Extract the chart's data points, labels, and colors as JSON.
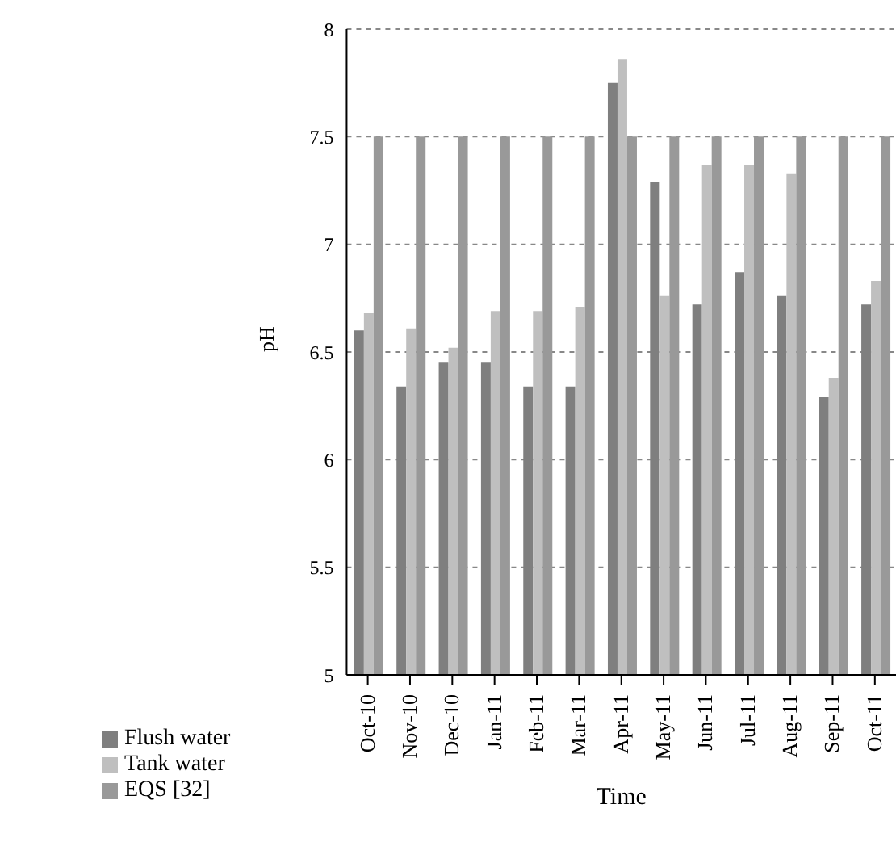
{
  "chart_data": {
    "type": "bar",
    "xlabel": "Time",
    "ylabel": "pH",
    "categories": [
      "Oct-10",
      "Nov-10",
      "Dec-10",
      "Jan-11",
      "Feb-11",
      "Mar-11",
      "Apr-11",
      "May-11",
      "Jun-11",
      "Jul-11",
      "Aug-11",
      "Sep-11",
      "Oct-11"
    ],
    "series": [
      {
        "name": "Flush water",
        "color": "#7f7f7f",
        "values": [
          6.6,
          6.34,
          6.45,
          6.45,
          6.34,
          6.34,
          7.75,
          7.29,
          6.72,
          6.87,
          6.76,
          6.29,
          6.72
        ]
      },
      {
        "name": "Tank water",
        "color": "#bfbfbf",
        "values": [
          6.68,
          6.61,
          6.52,
          6.69,
          6.69,
          6.71,
          7.86,
          6.76,
          7.37,
          7.37,
          7.33,
          6.38,
          6.83
        ]
      },
      {
        "name": "EQS [32]",
        "color": "#999999",
        "values": [
          7.5,
          7.5,
          7.5,
          7.5,
          7.5,
          7.5,
          7.5,
          7.5,
          7.5,
          7.5,
          7.5,
          7.5,
          7.5
        ]
      }
    ],
    "ylim": [
      5,
      8
    ],
    "yticks": [
      5,
      5.5,
      6,
      6.5,
      7,
      7.5,
      8
    ],
    "grid": "y",
    "legend": "bottom left"
  }
}
